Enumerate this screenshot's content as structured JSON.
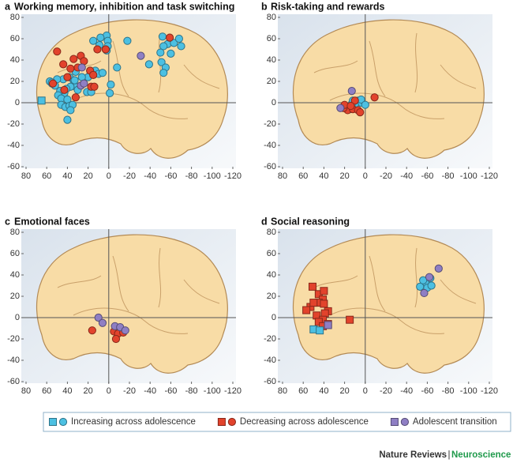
{
  "charts": [
    {
      "type": "scatter",
      "panel": "a",
      "title": "Working memory, inhibition and task switching",
      "xlim": [
        80,
        -120
      ],
      "xticks": [
        80,
        60,
        40,
        20,
        0,
        -20,
        -40,
        -60,
        -80,
        -100,
        -120
      ],
      "ylim": [
        -60,
        80
      ],
      "yticks": [
        80,
        60,
        40,
        20,
        0,
        -20,
        -40,
        -60
      ],
      "series": [
        {
          "color": "#4cc0e2",
          "marker": "circle",
          "x": [
            2,
            1,
            1,
            2,
            9,
            15,
            8,
            -18,
            18,
            13,
            10,
            6,
            20,
            26,
            32,
            34,
            38,
            44,
            50,
            32,
            30,
            37,
            41,
            43,
            47,
            52,
            55,
            57,
            49,
            46,
            40,
            46,
            42,
            38,
            35,
            37,
            40,
            33,
            21,
            17,
            -1,
            -2,
            -8,
            -39,
            -52,
            -57,
            -63,
            -68,
            -70,
            -53,
            -50,
            -60,
            -51,
            -55,
            -53,
            55
          ],
          "values": [
            63,
            58,
            53,
            49,
            54,
            58,
            61,
            58,
            30,
            30,
            27,
            28,
            24,
            24,
            29,
            21,
            24,
            22,
            22,
            15,
            12,
            15,
            13,
            9,
            11,
            16,
            18,
            20,
            7,
            4,
            3,
            -2,
            -4,
            -3,
            -2,
            -7,
            -16,
            21,
            10,
            10,
            9,
            17,
            33,
            36,
            62,
            55,
            56,
            60,
            53,
            53,
            47,
            46,
            38,
            33,
            28,
            19
          ]
        },
        {
          "color": "#4cc0e2",
          "marker": "square",
          "x": [
            65
          ],
          "values": [
            2
          ]
        },
        {
          "color": "#e2432c",
          "marker": "circle",
          "x": [
            50,
            44,
            34,
            37,
            27,
            24,
            30,
            40,
            18,
            15,
            17,
            14,
            11,
            3,
            -59,
            43,
            32,
            54
          ],
          "values": [
            48,
            36,
            41,
            32,
            44,
            39,
            33,
            24,
            30,
            26,
            15,
            15,
            50,
            50,
            61,
            12,
            5,
            18
          ]
        },
        {
          "color": "#8f7fc4",
          "marker": "circle",
          "x": [
            -31,
            26,
            27,
            24
          ],
          "values": [
            44,
            33,
            16,
            18
          ]
        }
      ]
    },
    {
      "type": "scatter",
      "panel": "b",
      "title": "Risk-taking and rewards",
      "xlim": [
        80,
        -120
      ],
      "xticks": [
        80,
        60,
        40,
        20,
        0,
        -20,
        -40,
        -60,
        -80,
        -100,
        -120
      ],
      "ylim": [
        -60,
        80
      ],
      "yticks": [
        80,
        60,
        40,
        20,
        0,
        -20,
        -40,
        -60
      ],
      "series": [
        {
          "color": "#4cc0e2",
          "marker": "circle",
          "x": [
            7,
            4,
            10,
            13,
            15,
            4,
            0,
            12
          ],
          "values": [
            2,
            0,
            -2,
            -1,
            -6,
            3,
            -2,
            2
          ]
        },
        {
          "color": "#e2432c",
          "marker": "circle",
          "x": [
            -9,
            19,
            17,
            21,
            12,
            7,
            20,
            10,
            14,
            5
          ],
          "values": [
            5,
            -4,
            -7,
            -5,
            -6,
            -7,
            -2,
            2,
            -3,
            -9
          ]
        },
        {
          "color": "#8f7fc4",
          "marker": "circle",
          "x": [
            13,
            24
          ],
          "values": [
            11,
            -5
          ]
        }
      ]
    },
    {
      "type": "scatter",
      "panel": "c",
      "title": "Emotional faces",
      "xlim": [
        80,
        -120
      ],
      "xticks": [
        80,
        60,
        40,
        20,
        0,
        -20,
        -40,
        -60,
        -80,
        -100,
        -120
      ],
      "ylim": [
        -60,
        80
      ],
      "yticks": [
        80,
        60,
        40,
        20,
        0,
        -20,
        -40,
        -60
      ],
      "series": [
        {
          "color": "#e2432c",
          "marker": "circle",
          "x": [
            16,
            -5,
            -9,
            -14,
            -7
          ],
          "values": [
            -12,
            -13,
            -15,
            -14,
            -20
          ]
        },
        {
          "color": "#8f7fc4",
          "marker": "circle",
          "x": [
            -6,
            -11,
            -16,
            10,
            6
          ],
          "values": [
            -8,
            -9,
            -12,
            0,
            -5
          ]
        }
      ]
    },
    {
      "type": "scatter",
      "panel": "d",
      "title": "Social reasoning",
      "xlim": [
        80,
        -120
      ],
      "xticks": [
        80,
        60,
        40,
        20,
        0,
        -20,
        -40,
        -60,
        -80,
        -100,
        -120
      ],
      "ylim": [
        -60,
        80
      ],
      "yticks": [
        80,
        60,
        40,
        20,
        0,
        -20,
        -40,
        -60
      ],
      "series": [
        {
          "color": "#e2432c",
          "marker": "square",
          "x": [
            51,
            45,
            41,
            45,
            40,
            53,
            36,
            39,
            47,
            57,
            41,
            45,
            36,
            41,
            15,
            50,
            40
          ],
          "values": [
            29,
            22,
            17,
            14,
            13,
            10,
            6,
            4,
            2,
            7,
            -2,
            -4,
            -6,
            -8,
            -2,
            14,
            25
          ]
        },
        {
          "color": "#4cc0e2",
          "marker": "square",
          "x": [
            50,
            44
          ],
          "values": [
            -11,
            -12
          ]
        },
        {
          "color": "#8f7fc4",
          "marker": "square",
          "x": [
            36
          ],
          "values": [
            -7
          ]
        },
        {
          "color": "#4cc0e2",
          "marker": "circle",
          "x": [
            -58,
            -60,
            -64,
            -53,
            -63,
            -56
          ],
          "values": [
            33,
            28,
            30,
            29,
            37,
            35
          ]
        },
        {
          "color": "#8f7fc4",
          "marker": "circle",
          "x": [
            -71,
            -57,
            -62
          ],
          "values": [
            46,
            23,
            38
          ]
        }
      ]
    }
  ],
  "legend": [
    {
      "name": "Increasing across adolescence",
      "color": "#4cc0e2"
    },
    {
      "name": "Decreasing across adolescence",
      "color": "#e2432c"
    },
    {
      "name": "Adolescent transition",
      "color": "#8f7fc4"
    }
  ],
  "credit": {
    "journal": "Nature Reviews",
    "separator": "|",
    "section": "Neuroscience"
  }
}
